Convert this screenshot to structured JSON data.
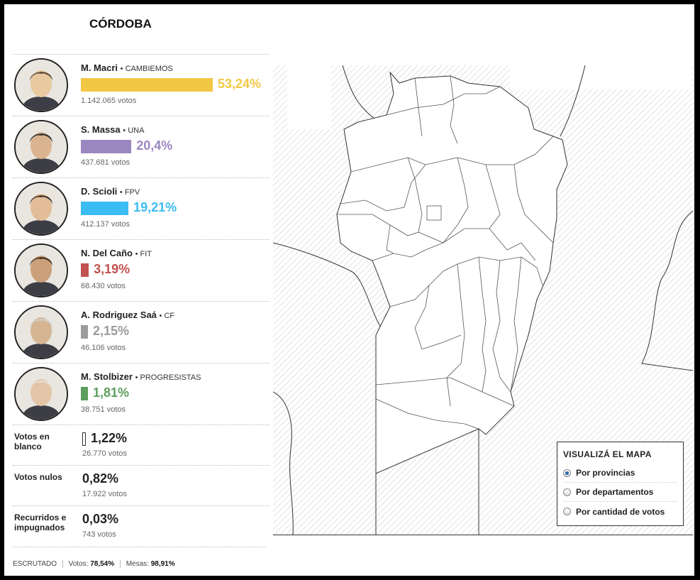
{
  "province": "CÓRDOBA",
  "candidates": [
    {
      "name": "M. Macri",
      "party": "CAMBIEMOS",
      "pct": "53,24%",
      "pct_value": 53.24,
      "votes": "1.142.065 votos",
      "color": "#f2c744"
    },
    {
      "name": "S. Massa",
      "party": "UNA",
      "pct": "20,4%",
      "pct_value": 20.4,
      "votes": "437.681 votos",
      "color": "#9b87c0"
    },
    {
      "name": "D. Scioli",
      "party": "FPV",
      "pct": "19,21%",
      "pct_value": 19.21,
      "votes": "412.137 votos",
      "color": "#3bbcf2"
    },
    {
      "name": "N. Del Caño",
      "party": "FIT",
      "pct": "3,19%",
      "pct_value": 3.19,
      "votes": "68.430 votos",
      "color": "#c0524f"
    },
    {
      "name": "A. Rodriguez Saá",
      "party": "CF",
      "pct": "2,15%",
      "pct_value": 2.15,
      "votes": "46.106 votos",
      "color": "#9b9b9b"
    },
    {
      "name": "M. Stolbizer",
      "party": "PROGRESISTAS",
      "pct": "1,81%",
      "pct_value": 1.81,
      "votes": "38.751 votos",
      "color": "#5e9e5c"
    }
  ],
  "others": [
    {
      "label": "Votos en blanco",
      "pct": "1,22%",
      "votes": "26.770 votos"
    },
    {
      "label": "Votos nulos",
      "pct": "0,82%",
      "votes": "17.922 votos"
    },
    {
      "label": "Recurridos e impugnados",
      "pct": "0,03%",
      "votes": "743 votos"
    }
  ],
  "footer": {
    "label": "ESCRUTADO",
    "votos_label": "Votos:",
    "votos_value": "78,54%",
    "mesas_label": "Mesas:",
    "mesas_value": "98,91%"
  },
  "legend": {
    "title": "VISUALIZÁ EL MAPA",
    "options": [
      "Por provincias",
      "Por departamentos",
      "Por cantidad de votos"
    ],
    "selected": 0
  }
}
